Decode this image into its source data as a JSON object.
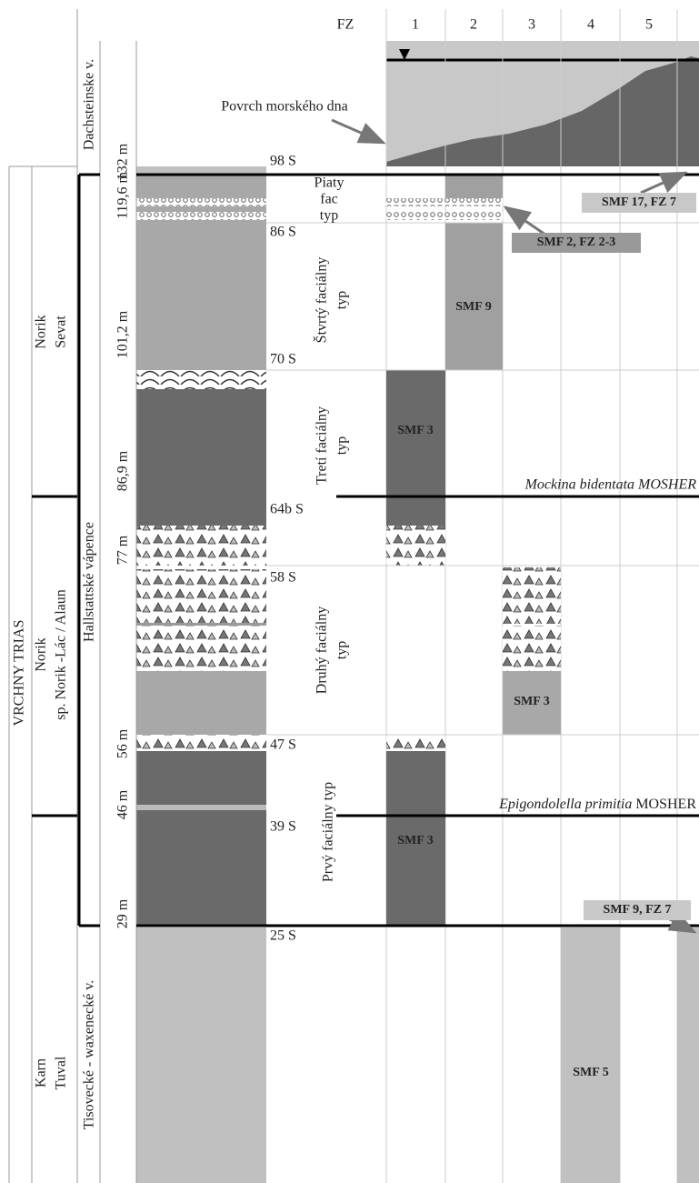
{
  "header": {
    "fz": "FZ",
    "zones": [
      "1",
      "2",
      "3",
      "4",
      "5"
    ]
  },
  "seafloor_label": "Povrch morského dna",
  "stratigraphy": {
    "system": "VRCHNY TRIAS",
    "stages": [
      {
        "lines": [
          "Norik",
          "Sevat"
        ]
      },
      {
        "lines": [
          "Norik",
          "sp. Norik -Lác / Alaun"
        ]
      },
      {
        "lines": [
          "Karn",
          "Tuval"
        ]
      }
    ],
    "formations": [
      "Dachsteinske v.",
      "Hallstattské vápence",
      "Tisovecké - waxenecké v."
    ]
  },
  "depths": [
    "132 m",
    "119,6 m",
    "101,2 m",
    "86,9 m",
    "77 m",
    "56 m",
    "46 m",
    "29 m"
  ],
  "samples": [
    "98 S",
    "86 S",
    "70 S",
    "64b S",
    "58 S",
    "47 S",
    "39 S",
    "25 S"
  ],
  "facies_types": [
    {
      "lines": [
        "Piaty",
        "fac",
        "typ"
      ]
    },
    {
      "lines": [
        "Štvrtý faciálny",
        "typ"
      ]
    },
    {
      "lines": [
        "Tretí faciálny",
        "typ"
      ]
    },
    {
      "lines": [
        "Druhý faciálny",
        "typ"
      ]
    },
    {
      "lines": [
        "Prvý faciálny typ"
      ]
    }
  ],
  "smf_labels": [
    "SMF 9",
    "SMF 3",
    "SMF 3",
    "SMF 3",
    "SMF 5"
  ],
  "callouts": [
    "SMF 17, FZ 7",
    "SMF 2, FZ 2-3",
    "SMF 9, FZ 7"
  ],
  "conodonts": [
    {
      "species": "Mockina bidentata MOSHER"
    },
    {
      "species": "Epigondolella primitia",
      "author": "MOSHER"
    }
  ]
}
